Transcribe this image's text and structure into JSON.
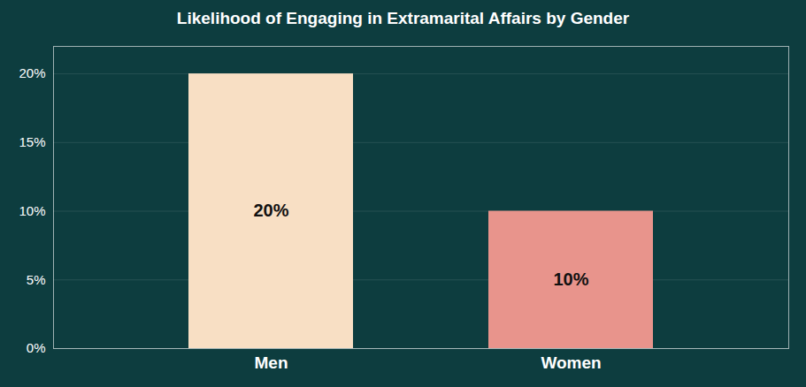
{
  "chart_data": {
    "type": "bar",
    "title": "Likelihood of Engaging in Extramarital Affairs by Gender",
    "categories": [
      "Men",
      "Women"
    ],
    "values": [
      20,
      10
    ],
    "value_labels": [
      "20%",
      "10%"
    ],
    "colors": [
      "#f8dfc4",
      "#e8948c"
    ],
    "ylim": [
      0,
      22
    ],
    "yticks": [
      {
        "value": 0,
        "label": "0%"
      },
      {
        "value": 5,
        "label": "5%"
      },
      {
        "value": 10,
        "label": "10%"
      },
      {
        "value": 15,
        "label": "15%"
      },
      {
        "value": 20,
        "label": "20%"
      }
    ],
    "grid": true,
    "data_labels": true
  }
}
